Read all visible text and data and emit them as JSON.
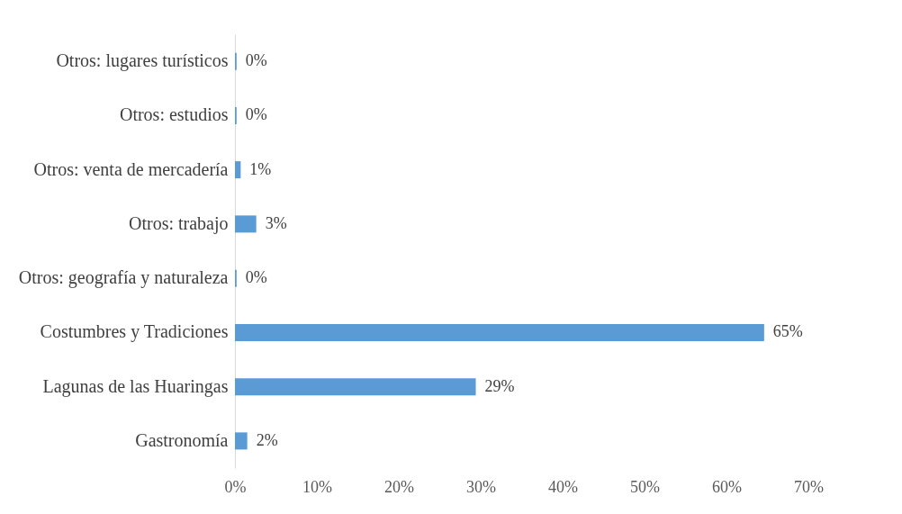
{
  "chart_data": {
    "type": "bar",
    "orientation": "horizontal",
    "categories": [
      "Otros: lugares turísticos",
      "Otros: estudios",
      "Otros: venta de mercadería",
      "Otros: trabajo",
      "Otros: geografía y naturaleza",
      "Costumbres y Tradiciones",
      "Lagunas de las Huaringas",
      "Gastronomía"
    ],
    "values": [
      0.2,
      0.2,
      0.7,
      2.6,
      0.2,
      64.6,
      29.4,
      1.5
    ],
    "value_labels": [
      "0%",
      "0%",
      "1%",
      "3%",
      "0%",
      "65%",
      "29%",
      "2%"
    ],
    "color": "#5b9bd5",
    "xlim": [
      0,
      70
    ],
    "xticks": [
      {
        "value": 0,
        "label": "0%"
      },
      {
        "value": 10,
        "label": "10%"
      },
      {
        "value": 20,
        "label": "20%"
      },
      {
        "value": 30,
        "label": "30%"
      },
      {
        "value": 40,
        "label": "40%"
      },
      {
        "value": 50,
        "label": "50%"
      },
      {
        "value": 60,
        "label": "60%"
      },
      {
        "value": 70,
        "label": "70%"
      }
    ],
    "grid": false
  }
}
